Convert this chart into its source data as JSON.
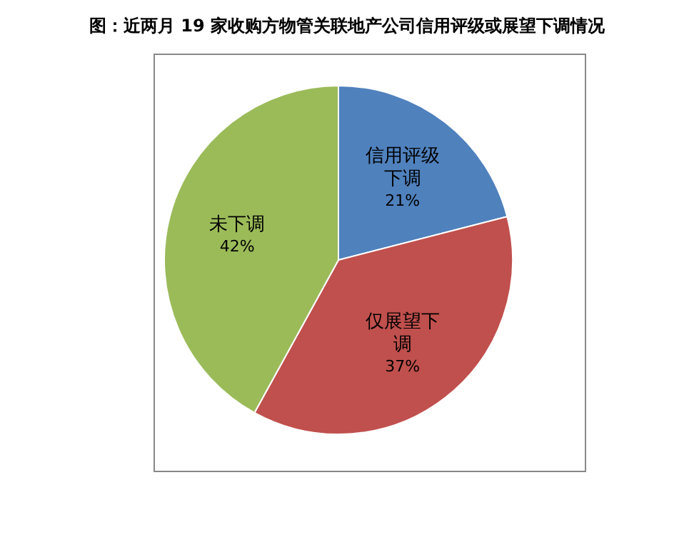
{
  "chart_data": {
    "type": "pie",
    "title": "图：近两月 19 家收购方物管关联地产公司信用评级或展望下调情况",
    "categories": [
      "信用评级下调",
      "仅展望下调",
      "未下调"
    ],
    "values": [
      21,
      37,
      42
    ],
    "colors": [
      "#4f81bd",
      "#c0504d",
      "#9bbb59"
    ],
    "value_labels": [
      "21%",
      "37%",
      "42%"
    ]
  }
}
